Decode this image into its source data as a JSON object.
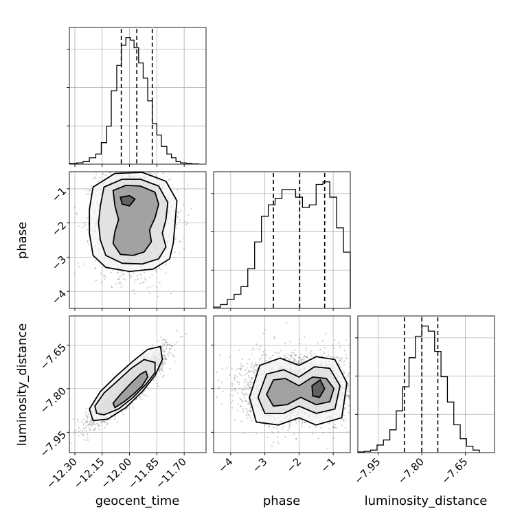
{
  "chart_data": {
    "type": "corner",
    "parameters": [
      "geocent_time",
      "phase",
      "luminosity_distance"
    ],
    "axes": {
      "geocent_time": {
        "label": "geocent_time",
        "range": [
          -12.33,
          -11.58
        ],
        "ticks": [
          -12.3,
          -12.15,
          -12.0,
          -11.85,
          -11.7
        ],
        "tick_labels": [
          "−12.30",
          "−12.15",
          "−12.00",
          "−11.85",
          "−11.70"
        ]
      },
      "phase": {
        "label": "phase",
        "range": [
          -4.5,
          -0.5
        ],
        "ticks": [
          -4,
          -3,
          -2,
          -1
        ],
        "tick_labels": [
          "−4",
          "−3",
          "−2",
          "−1"
        ]
      },
      "luminosity_distance": {
        "label": "luminosity_distance",
        "range": [
          -8.02,
          -7.55
        ],
        "ticks": [
          -7.95,
          -7.8,
          -7.65
        ],
        "tick_labels": [
          "−7.95",
          "−7.80",
          "−7.65"
        ]
      }
    },
    "histograms": {
      "geocent_time": {
        "bins": [
          -12.33,
          -12.29,
          -12.255,
          -12.22,
          -12.185,
          -12.155,
          -12.125,
          -12.1,
          -12.07,
          -12.045,
          -12.02,
          -11.995,
          -11.975,
          -11.95,
          -11.925,
          -11.9,
          -11.875,
          -11.85,
          -11.825,
          -11.795,
          -11.77,
          -11.745,
          -11.72,
          -11.69,
          -11.66,
          -11.62
        ],
        "counts": [
          0.5,
          1,
          2,
          5,
          8,
          17,
          30,
          58,
          78,
          94,
          100,
          98,
          92,
          80,
          68,
          50,
          32,
          23,
          14,
          8,
          5,
          2,
          1,
          0.5,
          0.2
        ],
        "quantiles": [
          -12.045,
          -11.96,
          -11.875
        ]
      },
      "phase": {
        "bins": [
          -4.5,
          -4.3,
          -4.1,
          -3.9,
          -3.7,
          -3.5,
          -3.3,
          -3.1,
          -2.9,
          -2.7,
          -2.5,
          -2.3,
          -2.1,
          -1.9,
          -1.7,
          -1.5,
          -1.3,
          -1.1,
          -0.9,
          -0.7,
          -0.5
        ],
        "counts": [
          1,
          3,
          7,
          11,
          17,
          31,
          52,
          72,
          81,
          86,
          93,
          93,
          87,
          79,
          81,
          97,
          99,
          87,
          63,
          44
        ],
        "quantiles": [
          -2.75,
          -1.98,
          -1.25
        ]
      },
      "luminosity_distance": {
        "bins": [
          -8.02,
          -7.998,
          -7.976,
          -7.954,
          -7.932,
          -7.91,
          -7.888,
          -7.866,
          -7.844,
          -7.822,
          -7.8,
          -7.778,
          -7.756,
          -7.734,
          -7.712,
          -7.69,
          -7.668,
          -7.646,
          -7.624,
          -7.602
        ],
        "counts": [
          0.5,
          1,
          2,
          6,
          10,
          18,
          33,
          52,
          75,
          92,
          100,
          96,
          80,
          60,
          40,
          22,
          11,
          5,
          2
        ],
        "quantiles": [
          -7.86,
          -7.8,
          -7.745
        ]
      }
    },
    "contours": {
      "phase_vs_geocent_time": [
        [
          [
            -12.09,
            -1.05
          ],
          [
            -12.02,
            -0.9
          ],
          [
            -11.94,
            -0.92
          ],
          [
            -11.86,
            -1.1
          ],
          [
            -11.84,
            -1.45
          ],
          [
            -11.86,
            -1.85
          ],
          [
            -11.89,
            -2.2
          ],
          [
            -11.88,
            -2.55
          ],
          [
            -11.92,
            -2.85
          ],
          [
            -11.98,
            -2.95
          ],
          [
            -12.05,
            -2.92
          ],
          [
            -12.09,
            -2.6
          ],
          [
            -12.08,
            -2.25
          ],
          [
            -12.06,
            -1.9
          ],
          [
            -12.08,
            -1.5
          ]
        ],
        [
          [
            -12.14,
            -0.95
          ],
          [
            -12.04,
            -0.72
          ],
          [
            -11.94,
            -0.72
          ],
          [
            -11.84,
            -0.92
          ],
          [
            -11.79,
            -1.4
          ],
          [
            -11.8,
            -1.9
          ],
          [
            -11.82,
            -2.3
          ],
          [
            -11.8,
            -2.7
          ],
          [
            -11.84,
            -3.05
          ],
          [
            -11.93,
            -3.2
          ],
          [
            -12.04,
            -3.18
          ],
          [
            -12.13,
            -2.95
          ],
          [
            -12.16,
            -2.5
          ],
          [
            -12.17,
            -2.0
          ],
          [
            -12.16,
            -1.5
          ]
        ],
        [
          [
            -12.2,
            -0.95
          ],
          [
            -12.08,
            -0.55
          ],
          [
            -11.93,
            -0.52
          ],
          [
            -11.8,
            -0.78
          ],
          [
            -11.74,
            -1.35
          ],
          [
            -11.75,
            -2.0
          ],
          [
            -11.76,
            -2.6
          ],
          [
            -11.78,
            -3.05
          ],
          [
            -11.87,
            -3.35
          ],
          [
            -12.0,
            -3.42
          ],
          [
            -12.13,
            -3.3
          ],
          [
            -12.2,
            -2.95
          ],
          [
            -12.22,
            -2.3
          ],
          [
            -12.22,
            -1.6
          ]
        ],
        [
          [
            -12.05,
            -1.25
          ],
          [
            -12.0,
            -1.2
          ],
          [
            -11.97,
            -1.3
          ],
          [
            -12.0,
            -1.5
          ],
          [
            -12.04,
            -1.45
          ]
        ]
      ],
      "luminosity_distance_vs_geocent_time": [
        [
          [
            -12.09,
            -7.85
          ],
          [
            -12.05,
            -7.82
          ],
          [
            -11.99,
            -7.78
          ],
          [
            -11.94,
            -7.75
          ],
          [
            -11.91,
            -7.74
          ],
          [
            -11.9,
            -7.76
          ],
          [
            -11.93,
            -7.79
          ],
          [
            -11.98,
            -7.82
          ],
          [
            -12.03,
            -7.845
          ],
          [
            -12.08,
            -7.865
          ]
        ],
        [
          [
            -12.19,
            -7.86
          ],
          [
            -12.14,
            -7.815
          ],
          [
            -12.06,
            -7.77
          ],
          [
            -11.99,
            -7.73
          ],
          [
            -11.92,
            -7.7
          ],
          [
            -11.86,
            -7.71
          ],
          [
            -11.86,
            -7.745
          ],
          [
            -11.91,
            -7.785
          ],
          [
            -11.98,
            -7.83
          ],
          [
            -12.06,
            -7.87
          ],
          [
            -12.14,
            -7.89
          ],
          [
            -12.18,
            -7.885
          ]
        ],
        [
          [
            -12.22,
            -7.87
          ],
          [
            -12.16,
            -7.81
          ],
          [
            -12.07,
            -7.755
          ],
          [
            -11.98,
            -7.705
          ],
          [
            -11.9,
            -7.665
          ],
          [
            -11.83,
            -7.655
          ],
          [
            -11.82,
            -7.7
          ],
          [
            -11.86,
            -7.755
          ],
          [
            -11.93,
            -7.81
          ],
          [
            -12.02,
            -7.865
          ],
          [
            -12.12,
            -7.905
          ],
          [
            -12.2,
            -7.91
          ]
        ]
      ],
      "luminosity_distance_vs_phase": [
        [
          [
            -2.95,
            -7.82
          ],
          [
            -2.75,
            -7.77
          ],
          [
            -2.4,
            -7.765
          ],
          [
            -2.0,
            -7.79
          ],
          [
            -1.6,
            -7.76
          ],
          [
            -1.2,
            -7.765
          ],
          [
            -0.98,
            -7.8
          ],
          [
            -1.1,
            -7.845
          ],
          [
            -1.5,
            -7.855
          ],
          [
            -1.95,
            -7.83
          ],
          [
            -2.35,
            -7.855
          ],
          [
            -2.75,
            -7.86
          ]
        ],
        [
          [
            -3.2,
            -7.83
          ],
          [
            -2.95,
            -7.75
          ],
          [
            -2.45,
            -7.735
          ],
          [
            -2.0,
            -7.76
          ],
          [
            -1.55,
            -7.725
          ],
          [
            -1.1,
            -7.73
          ],
          [
            -0.8,
            -7.79
          ],
          [
            -0.95,
            -7.87
          ],
          [
            -1.5,
            -7.885
          ],
          [
            -2.0,
            -7.86
          ],
          [
            -2.45,
            -7.885
          ],
          [
            -3.0,
            -7.885
          ]
        ],
        [
          [
            -3.45,
            -7.83
          ],
          [
            -3.15,
            -7.72
          ],
          [
            -2.55,
            -7.695
          ],
          [
            -2.0,
            -7.72
          ],
          [
            -1.5,
            -7.69
          ],
          [
            -0.95,
            -7.7
          ],
          [
            -0.6,
            -7.78
          ],
          [
            -0.75,
            -7.9
          ],
          [
            -1.5,
            -7.925
          ],
          [
            -2.0,
            -7.9
          ],
          [
            -2.6,
            -7.925
          ],
          [
            -3.25,
            -7.915
          ]
        ],
        [
          [
            -1.62,
            -7.79
          ],
          [
            -1.38,
            -7.77
          ],
          [
            -1.25,
            -7.8
          ],
          [
            -1.4,
            -7.83
          ],
          [
            -1.6,
            -7.825
          ]
        ]
      ]
    },
    "density_points": {
      "phase_vs_geocent_time": {
        "center": [
          -11.98,
          -1.9
        ],
        "spread": [
          0.1,
          0.75
        ],
        "n": 2600
      },
      "luminosity_distance_vs_geocent_time": {
        "center": [
          -12.0,
          -7.79
        ],
        "spread": [
          0.095,
          0.058
        ],
        "corr": 0.9,
        "n": 2600
      },
      "luminosity_distance_vs_phase": {
        "center": [
          -2.0,
          -7.8
        ],
        "spread": [
          0.85,
          0.06
        ],
        "n": 2600
      }
    }
  }
}
